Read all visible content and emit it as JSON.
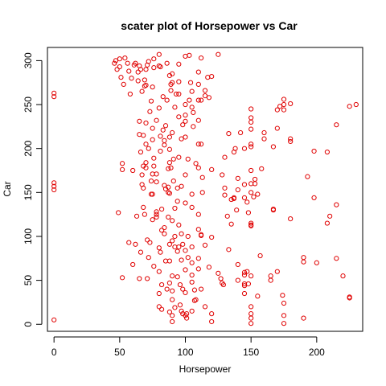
{
  "chart_data": {
    "type": "scatter",
    "title": "scater plot of Horsepower vs Car",
    "xlabel": "Horsepower",
    "ylabel": "Car",
    "xlim": [
      -5,
      235
    ],
    "ylim": [
      -8,
      315
    ],
    "x_ticks": [
      0,
      50,
      100,
      150,
      200
    ],
    "y_ticks": [
      0,
      50,
      100,
      150,
      200,
      250,
      300
    ],
    "grid": false,
    "legend": "none",
    "point_color": "#e00000",
    "series": [
      {
        "points": [
          [
            0,
            5
          ],
          [
            0,
            153
          ],
          [
            0,
            157
          ],
          [
            0,
            161
          ],
          [
            0,
            259
          ],
          [
            0,
            263
          ],
          [
            46,
            297
          ],
          [
            47,
            300
          ],
          [
            48,
            290
          ],
          [
            49,
            127
          ],
          [
            50,
            293
          ],
          [
            50,
            302
          ],
          [
            51,
            281
          ],
          [
            52,
            53
          ],
          [
            52,
            176
          ],
          [
            52,
            183
          ],
          [
            53,
            273
          ],
          [
            54,
            303
          ],
          [
            56,
            297
          ],
          [
            57,
            93
          ],
          [
            57,
            288
          ],
          [
            58,
            262
          ],
          [
            59,
            280
          ],
          [
            60,
            68
          ],
          [
            60,
            175
          ],
          [
            61,
            295
          ],
          [
            62,
            297
          ],
          [
            62,
            91
          ],
          [
            63,
            123
          ],
          [
            64,
            277
          ],
          [
            64,
            287
          ],
          [
            65,
            294
          ],
          [
            65,
            52
          ],
          [
            65,
            231
          ],
          [
            65,
            216
          ],
          [
            66,
            82
          ],
          [
            66,
            196
          ],
          [
            66,
            290
          ],
          [
            67,
            159
          ],
          [
            67,
            170
          ],
          [
            67,
            265
          ],
          [
            68,
            133
          ],
          [
            68,
            155
          ],
          [
            68,
            180
          ],
          [
            68,
            215
          ],
          [
            69,
            125
          ],
          [
            69,
            271
          ],
          [
            69,
            278
          ],
          [
            70,
            178
          ],
          [
            70,
            205
          ],
          [
            70,
            272
          ],
          [
            70,
            184
          ],
          [
            70,
            229
          ],
          [
            70,
            290
          ],
          [
            71,
            52
          ],
          [
            71,
            96
          ],
          [
            71,
            295
          ],
          [
            72,
            299
          ],
          [
            72,
            200
          ],
          [
            72,
            76
          ],
          [
            73,
            93
          ],
          [
            73,
            242
          ],
          [
            74,
            254
          ],
          [
            74,
            148
          ],
          [
            74,
            163
          ],
          [
            75,
            270
          ],
          [
            75,
            223
          ],
          [
            75,
            210
          ],
          [
            75,
            119
          ],
          [
            75,
            148
          ],
          [
            75,
            171
          ],
          [
            76,
            189
          ],
          [
            76,
            180
          ],
          [
            76,
            292
          ],
          [
            76,
            302
          ],
          [
            76,
            66
          ],
          [
            78,
            171
          ],
          [
            78,
            122
          ],
          [
            78,
            128
          ],
          [
            78,
            162
          ],
          [
            78,
            232
          ],
          [
            78,
            125
          ],
          [
            80,
            294
          ],
          [
            80,
            307
          ],
          [
            80,
            87
          ],
          [
            80,
            246
          ],
          [
            80,
            60
          ],
          [
            80,
            20
          ],
          [
            80,
            35
          ],
          [
            81,
            293
          ],
          [
            81,
            82
          ],
          [
            81,
            197
          ],
          [
            81,
            214
          ],
          [
            82,
            17
          ],
          [
            82,
            45
          ],
          [
            82,
            107
          ],
          [
            82,
            131
          ],
          [
            83,
            221
          ],
          [
            83,
            259
          ],
          [
            84,
            209
          ],
          [
            84,
            204
          ],
          [
            84,
            158
          ],
          [
            84,
            110
          ],
          [
            84,
            103
          ],
          [
            85,
            72
          ],
          [
            85,
            154
          ],
          [
            85,
            226
          ],
          [
            86,
            255
          ],
          [
            86,
            40
          ],
          [
            86,
            297
          ],
          [
            87,
            177
          ],
          [
            87,
            150
          ],
          [
            87,
            122
          ],
          [
            87,
            156
          ],
          [
            88,
            283
          ],
          [
            88,
            213
          ],
          [
            88,
            72
          ],
          [
            88,
            47
          ],
          [
            88,
            14
          ],
          [
            88,
            91
          ],
          [
            88,
            149
          ],
          [
            88,
            184
          ],
          [
            88,
            199
          ],
          [
            89,
            266
          ],
          [
            89,
            273
          ],
          [
            89,
            178
          ],
          [
            90,
            118
          ],
          [
            90,
            95
          ],
          [
            90,
            55
          ],
          [
            90,
            38
          ],
          [
            90,
            28
          ],
          [
            90,
            10
          ],
          [
            90,
            3
          ],
          [
            90,
            275
          ],
          [
            90,
            285
          ],
          [
            90,
            218
          ],
          [
            91,
            163
          ],
          [
            91,
            188
          ],
          [
            92,
            247
          ],
          [
            92,
            100
          ],
          [
            92,
            132
          ],
          [
            92,
            19
          ],
          [
            92,
            88
          ],
          [
            93,
            262
          ],
          [
            94,
            155
          ],
          [
            94,
            140
          ],
          [
            94,
            54
          ],
          [
            94,
            83
          ],
          [
            95,
            88
          ],
          [
            95,
            113
          ],
          [
            95,
            190
          ],
          [
            95,
            236
          ],
          [
            95,
            262
          ],
          [
            95,
            276
          ],
          [
            95,
            296
          ],
          [
            96,
            22
          ],
          [
            96,
            45
          ],
          [
            97,
            211
          ],
          [
            97,
            157
          ],
          [
            97,
            103
          ],
          [
            97,
            15
          ],
          [
            97,
            73
          ],
          [
            98,
            91
          ],
          [
            98,
            12
          ],
          [
            98,
            40
          ],
          [
            98,
            227
          ],
          [
            100,
            84
          ],
          [
            100,
            10
          ],
          [
            100,
            36
          ],
          [
            100,
            62
          ],
          [
            100,
            138
          ],
          [
            100,
            170
          ],
          [
            100,
            213
          ],
          [
            100,
            231
          ],
          [
            100,
            238
          ],
          [
            100,
            250
          ],
          [
            100,
            305
          ],
          [
            101,
            7
          ],
          [
            101,
            12
          ],
          [
            102,
            76
          ],
          [
            102,
            188
          ],
          [
            102,
            100
          ],
          [
            103,
            306
          ],
          [
            103,
            255
          ],
          [
            104,
            275
          ],
          [
            105,
            70
          ],
          [
            105,
            15
          ],
          [
            105,
            48
          ],
          [
            105,
            56
          ],
          [
            105,
            148
          ],
          [
            105,
            133
          ],
          [
            105,
            88
          ],
          [
            105,
            265
          ],
          [
            105,
            247
          ],
          [
            106,
            225
          ],
          [
            106,
            241
          ],
          [
            107,
            27
          ],
          [
            107,
            39
          ],
          [
            108,
            183
          ],
          [
            108,
            28
          ],
          [
            110,
            75
          ],
          [
            110,
            63
          ],
          [
            110,
            108
          ],
          [
            110,
            125
          ],
          [
            110,
            178
          ],
          [
            110,
            205
          ],
          [
            110,
            232
          ],
          [
            110,
            255
          ],
          [
            110,
            273
          ],
          [
            110,
            287
          ],
          [
            112,
            102
          ],
          [
            112,
            101
          ],
          [
            112,
            205
          ],
          [
            112,
            40
          ],
          [
            112,
            255
          ],
          [
            112,
            303
          ],
          [
            113,
            150
          ],
          [
            113,
            167
          ],
          [
            115,
            90
          ],
          [
            115,
            20
          ],
          [
            115,
            260
          ],
          [
            115,
            266
          ],
          [
            117,
            281
          ],
          [
            118,
            65
          ],
          [
            118,
            258
          ],
          [
            120,
            99
          ],
          [
            120,
            3
          ],
          [
            120,
            12
          ],
          [
            120,
            176
          ],
          [
            120,
            282
          ],
          [
            125,
            307
          ],
          [
            125,
            58
          ],
          [
            127,
            52
          ],
          [
            128,
            170
          ],
          [
            128,
            47
          ],
          [
            129,
            45
          ],
          [
            130,
            147
          ],
          [
            130,
            155
          ],
          [
            130,
            190
          ],
          [
            132,
            123
          ],
          [
            133,
            85
          ],
          [
            133,
            217
          ],
          [
            135,
            114
          ],
          [
            135,
            142
          ],
          [
            137,
            143
          ],
          [
            137,
            144
          ],
          [
            137,
            196
          ],
          [
            138,
            200
          ],
          [
            139,
            130
          ],
          [
            140,
            166
          ],
          [
            140,
            68
          ],
          [
            140,
            50
          ],
          [
            140,
            153
          ],
          [
            142,
            218
          ],
          [
            145,
            56
          ],
          [
            145,
            144
          ],
          [
            145,
            159
          ],
          [
            145,
            200
          ],
          [
            145,
            35
          ],
          [
            145,
            46
          ],
          [
            145,
            44
          ],
          [
            145,
            59
          ],
          [
            147,
            139
          ],
          [
            147,
            60
          ],
          [
            148,
            127
          ],
          [
            148,
            46
          ],
          [
            150,
            1
          ],
          [
            150,
            7
          ],
          [
            150,
            12
          ],
          [
            150,
            20
          ],
          [
            150,
            55
          ],
          [
            150,
            112
          ],
          [
            150,
            113
          ],
          [
            150,
            115
          ],
          [
            150,
            150
          ],
          [
            150,
            160
          ],
          [
            150,
            175
          ],
          [
            150,
            202
          ],
          [
            150,
            205
          ],
          [
            150,
            222
          ],
          [
            150,
            230
          ],
          [
            150,
            235
          ],
          [
            150,
            245
          ],
          [
            152,
            145
          ],
          [
            153,
            160
          ],
          [
            153,
            165
          ],
          [
            155,
            32
          ],
          [
            155,
            148
          ],
          [
            157,
            78
          ],
          [
            158,
            177
          ],
          [
            160,
            218
          ],
          [
            160,
            211
          ],
          [
            165,
            55
          ],
          [
            165,
            50
          ],
          [
            167,
            202
          ],
          [
            167,
            131
          ],
          [
            167,
            130
          ],
          [
            170,
            60
          ],
          [
            170,
            223
          ],
          [
            170,
            244
          ],
          [
            172,
            248
          ],
          [
            174,
            33
          ],
          [
            175,
            24
          ],
          [
            175,
            10
          ],
          [
            175,
            250
          ],
          [
            175,
            256
          ],
          [
            175,
            244
          ],
          [
            175,
            1
          ],
          [
            180,
            211
          ],
          [
            180,
            120
          ],
          [
            180,
            208
          ],
          [
            180,
            251
          ],
          [
            190,
            76
          ],
          [
            190,
            71
          ],
          [
            190,
            7
          ],
          [
            193,
            168
          ],
          [
            198,
            144
          ],
          [
            198,
            197
          ],
          [
            200,
            70
          ],
          [
            208,
            115
          ],
          [
            208,
            196
          ],
          [
            210,
            123
          ],
          [
            215,
            227
          ],
          [
            215,
            136
          ],
          [
            215,
            75
          ],
          [
            220,
            55
          ],
          [
            225,
            248
          ],
          [
            225,
            31
          ],
          [
            225,
            30
          ],
          [
            230,
            250
          ]
        ]
      }
    ]
  }
}
